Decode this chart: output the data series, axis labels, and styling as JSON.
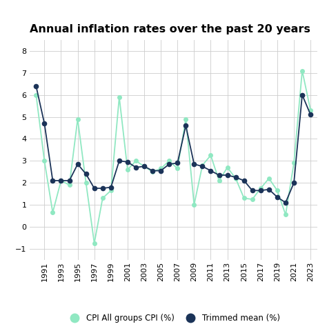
{
  "title": "Annual inflation rates over the past 20 years",
  "years": [
    1990,
    1991,
    1992,
    1993,
    1994,
    1995,
    1996,
    1997,
    1998,
    1999,
    2000,
    2001,
    2002,
    2003,
    2004,
    2005,
    2006,
    2007,
    2008,
    2009,
    2010,
    2011,
    2012,
    2013,
    2014,
    2015,
    2016,
    2017,
    2018,
    2019,
    2020,
    2021,
    2022,
    2023
  ],
  "cpi": [
    6.0,
    3.0,
    0.65,
    2.1,
    1.9,
    4.9,
    2.0,
    -0.75,
    1.3,
    1.65,
    5.9,
    2.6,
    3.0,
    2.75,
    2.5,
    2.65,
    3.0,
    2.65,
    4.9,
    1.0,
    2.8,
    3.25,
    2.1,
    2.7,
    2.2,
    1.3,
    1.25,
    1.75,
    2.2,
    1.65,
    0.55,
    2.9,
    7.1,
    5.3
  ],
  "trimmed": [
    6.4,
    4.7,
    2.1,
    2.1,
    2.1,
    2.85,
    2.4,
    1.75,
    1.75,
    1.8,
    3.0,
    2.95,
    2.7,
    2.75,
    2.55,
    2.55,
    2.85,
    2.9,
    4.6,
    2.85,
    2.75,
    2.55,
    2.35,
    2.35,
    2.25,
    2.1,
    1.65,
    1.65,
    1.7,
    1.35,
    1.1,
    2.0,
    6.0,
    5.1
  ],
  "cpi_color": "#90e8c2",
  "trimmed_color": "#1b3358",
  "bg_color": "#ffffff",
  "grid_color": "#cccccc",
  "ylim": [
    -1.5,
    8.5
  ],
  "yticks": [
    -1,
    0,
    1,
    2,
    3,
    4,
    5,
    6,
    7,
    8
  ],
  "xtick_years": [
    1991,
    1993,
    1995,
    1997,
    1999,
    2001,
    2003,
    2005,
    2007,
    2009,
    2011,
    2013,
    2015,
    2017,
    2019,
    2021,
    2023
  ],
  "legend_cpi_label": "CPI All groups CPI (%)",
  "legend_trimmed_label": "Trimmed mean (%)",
  "title_fontsize": 11.5,
  "tick_fontsize": 8,
  "legend_fontsize": 8.5
}
